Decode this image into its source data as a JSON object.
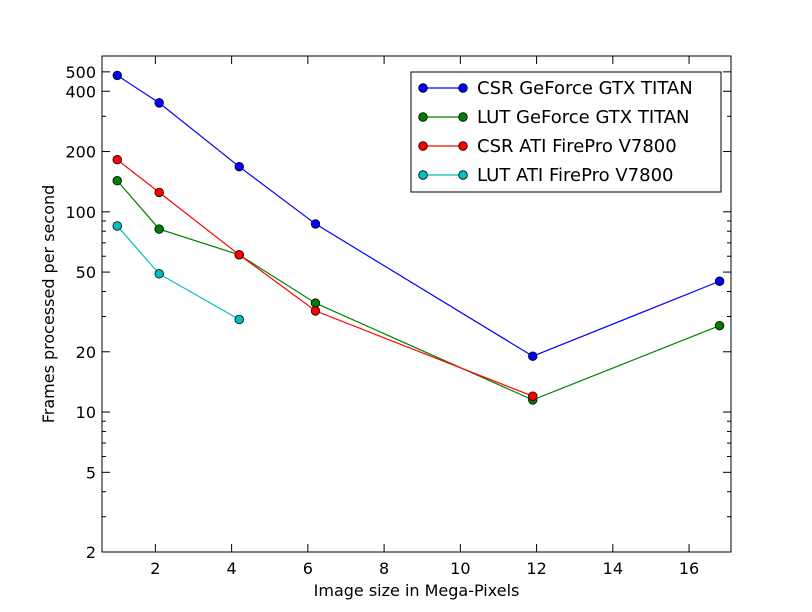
{
  "chart_data": {
    "type": "line",
    "title": "",
    "xlabel": "Image size in Mega-Pixels",
    "ylabel": "Frames processed per second",
    "xlim": [
      0.6,
      17.1
    ],
    "ylim": [
      2,
      600
    ],
    "yscale": "log",
    "grid": false,
    "legend_position": "top-right",
    "x_ticks": [
      2,
      4,
      6,
      8,
      10,
      12,
      14,
      16
    ],
    "x_tick_labels": [
      "2",
      "4",
      "6",
      "8",
      "10",
      "12",
      "14",
      "16"
    ],
    "y_ticks": [
      2,
      5,
      10,
      20,
      50,
      100,
      200,
      400,
      500
    ],
    "y_tick_labels": [
      "2",
      "5",
      "10",
      "20",
      "50",
      "100",
      "200",
      "400",
      "500"
    ],
    "series": [
      {
        "name": "CSR GeForce GTX TITAN",
        "color": "#0000ff",
        "x": [
          1.0,
          2.1,
          4.2,
          6.2,
          11.9,
          16.8
        ],
        "y": [
          480,
          350,
          168,
          87,
          19,
          45
        ]
      },
      {
        "name": "LUT GeForce GTX TITAN",
        "color": "#008000",
        "x": [
          1.0,
          2.1,
          4.2,
          6.2,
          11.9,
          16.8
        ],
        "y": [
          143,
          82,
          61,
          35,
          11.5,
          27
        ]
      },
      {
        "name": "CSR ATI FirePro V7800",
        "color": "#ff0000",
        "x": [
          1.0,
          2.1,
          4.2,
          6.2,
          11.9
        ],
        "y": [
          182,
          125,
          61,
          32,
          12
        ]
      },
      {
        "name": "LUT ATI FirePro V7800",
        "color": "#00bfbf",
        "x": [
          1.0,
          2.1,
          4.2
        ],
        "y": [
          85,
          49,
          29
        ]
      }
    ]
  }
}
